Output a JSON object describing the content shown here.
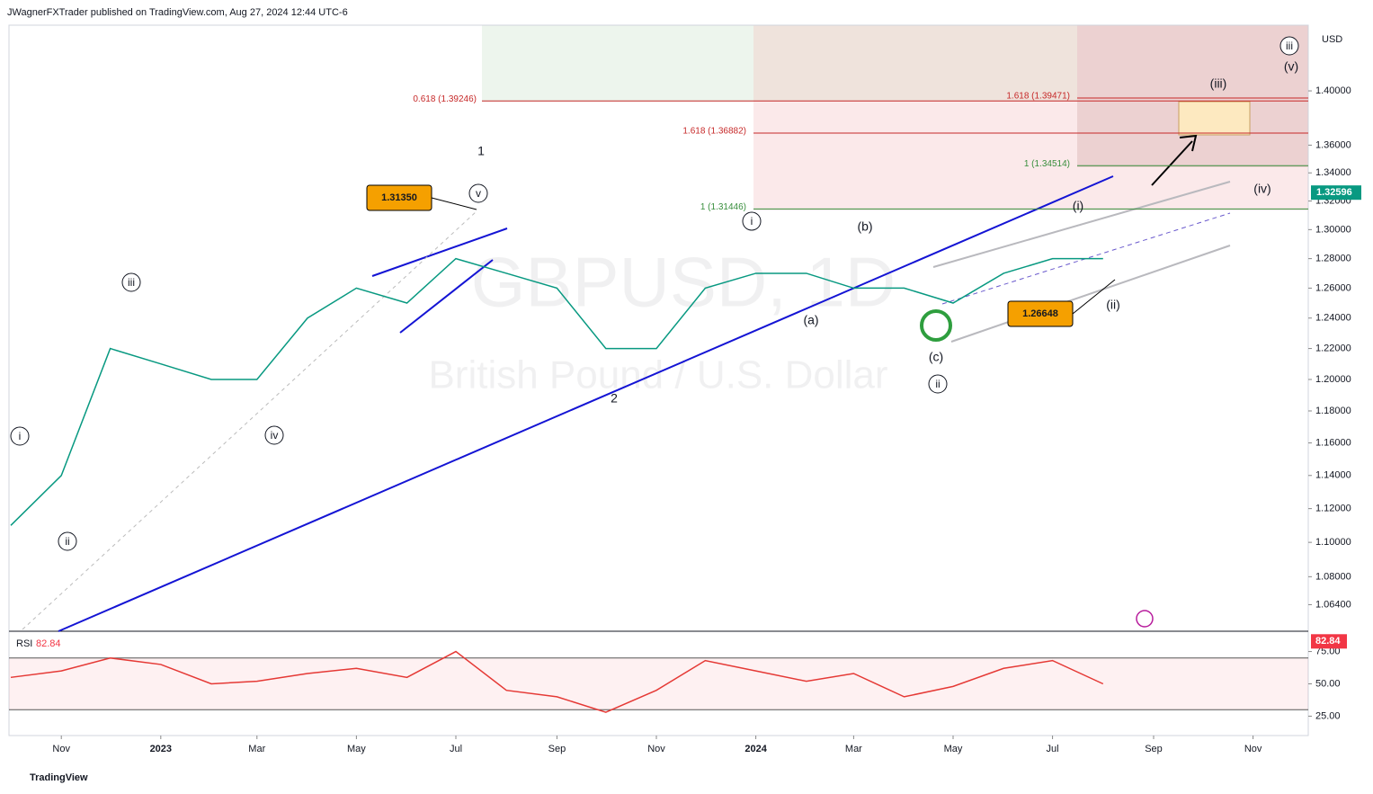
{
  "header": "JWagnerFXTrader published on TradingView.com, Aug 27, 2024 12:44 UTC-6",
  "footer": "TradingView",
  "chart_data": [
    {
      "type": "line",
      "watermark_symbol": "GBPUSD, 1D",
      "watermark_name": "British Pound / U.S. Dollar",
      "currency": "USD",
      "log_scale": true,
      "color": "#089981",
      "x": [
        "2022-10",
        "2022-11",
        "2022-12",
        "2023-01",
        "2023-02",
        "2023-03",
        "2023-04",
        "2023-05",
        "2023-06",
        "2023-07",
        "2023-08",
        "2023-09",
        "2023-10",
        "2023-11",
        "2023-12",
        "2024-01",
        "2024-02",
        "2024-03",
        "2024-04",
        "2024-05",
        "2024-06",
        "2024-07",
        "2024-08"
      ],
      "values": [
        1.11,
        1.14,
        1.22,
        1.21,
        1.2,
        1.2,
        1.24,
        1.26,
        1.25,
        1.28,
        1.27,
        1.26,
        1.22,
        1.22,
        1.26,
        1.27,
        1.27,
        1.26,
        1.26,
        1.25,
        1.27,
        1.28,
        1.28
      ],
      "last_value": 1.32596,
      "xlim": [
        "2022-10",
        "2024-12"
      ],
      "xticks": [
        {
          "value": "2022-11",
          "label": "Nov"
        },
        {
          "value": "2023-01",
          "label": "2023"
        },
        {
          "value": "2023-03",
          "label": "Mar"
        },
        {
          "value": "2023-05",
          "label": "May"
        },
        {
          "value": "2023-07",
          "label": "Jul"
        },
        {
          "value": "2023-09",
          "label": "Sep"
        },
        {
          "value": "2023-11",
          "label": "Nov"
        },
        {
          "value": "2024-01",
          "label": "2024"
        },
        {
          "value": "2024-03",
          "label": "Mar"
        },
        {
          "value": "2024-05",
          "label": "May"
        },
        {
          "value": "2024-07",
          "label": "Jul"
        },
        {
          "value": "2024-09",
          "label": "Sep"
        },
        {
          "value": "2024-11",
          "label": "Nov"
        }
      ],
      "ylim": [
        1.05,
        1.45
      ],
      "yticks": [
        {
          "value": 1.4,
          "label": "1.40000"
        },
        {
          "value": 1.36,
          "label": "1.36000"
        },
        {
          "value": 1.34,
          "label": "1.34000"
        },
        {
          "value": 1.32,
          "label": "1.32000"
        },
        {
          "value": 1.3,
          "label": "1.30000"
        },
        {
          "value": 1.28,
          "label": "1.28000"
        },
        {
          "value": 1.26,
          "label": "1.26000"
        },
        {
          "value": 1.24,
          "label": "1.24000"
        },
        {
          "value": 1.22,
          "label": "1.22000"
        },
        {
          "value": 1.2,
          "label": "1.20000"
        },
        {
          "value": 1.18,
          "label": "1.18000"
        },
        {
          "value": 1.16,
          "label": "1.16000"
        },
        {
          "value": 1.14,
          "label": "1.14000"
        },
        {
          "value": 1.12,
          "label": "1.12000"
        },
        {
          "value": 1.1,
          "label": "1.10000"
        },
        {
          "value": 1.08,
          "label": "1.08000"
        },
        {
          "value": 1.064,
          "label": "1.06400"
        }
      ],
      "levels": [
        {
          "label": "0.618 (1.39246)",
          "value": 1.39246,
          "color": "#c62828"
        },
        {
          "label": "1.618 (1.39471)",
          "value": 1.39471,
          "color": "#c62828"
        },
        {
          "label": "1.618 (1.36882)",
          "value": 1.36882,
          "color": "#c62828"
        },
        {
          "label": "1 (1.34514)",
          "value": 1.34514,
          "color": "#388e3c"
        },
        {
          "label": "1 (1.31446)",
          "value": 1.31446,
          "color": "#388e3c"
        }
      ],
      "annotations": [
        {
          "text": "1",
          "circled": false
        },
        {
          "text": "v",
          "circled": true
        },
        {
          "text": "iii",
          "circled": true
        },
        {
          "text": "iv",
          "circled": true
        },
        {
          "text": "i",
          "circled": true
        },
        {
          "text": "ii",
          "circled": true
        },
        {
          "text": "2",
          "circled": false
        },
        {
          "text": "i",
          "circled": true
        },
        {
          "text": "(b)",
          "circled": false
        },
        {
          "text": "(a)",
          "circled": false
        },
        {
          "text": "(c)",
          "circled": false
        },
        {
          "text": "ii",
          "circled": true
        },
        {
          "text": "(i)",
          "circled": false
        },
        {
          "text": "(ii)",
          "circled": false
        },
        {
          "text": "iii",
          "circled": true
        },
        {
          "text": "(v)",
          "circled": false
        },
        {
          "text": "(iii)",
          "circled": false
        },
        {
          "text": "(iv)",
          "circled": false
        }
      ],
      "price_tags": [
        "1.31350",
        "1.26648"
      ]
    },
    {
      "type": "line",
      "title": "RSI",
      "color": "#e53935",
      "x": [
        "2022-10",
        "2022-11",
        "2022-12",
        "2023-01",
        "2023-02",
        "2023-03",
        "2023-04",
        "2023-05",
        "2023-06",
        "2023-07",
        "2023-08",
        "2023-09",
        "2023-10",
        "2023-11",
        "2023-12",
        "2024-01",
        "2024-02",
        "2024-03",
        "2024-04",
        "2024-05",
        "2024-06",
        "2024-07",
        "2024-08"
      ],
      "values": [
        55,
        60,
        70,
        65,
        50,
        52,
        58,
        62,
        55,
        75,
        45,
        40,
        28,
        45,
        68,
        60,
        52,
        58,
        40,
        48,
        62,
        68,
        50
      ],
      "last_value": 82.84,
      "band": [
        30,
        70
      ],
      "ylim": [
        10,
        90
      ],
      "yticks": [
        {
          "value": 75,
          "label": "75.00"
        },
        {
          "value": 50,
          "label": "50.00"
        },
        {
          "value": 25,
          "label": "25.00"
        }
      ]
    }
  ]
}
